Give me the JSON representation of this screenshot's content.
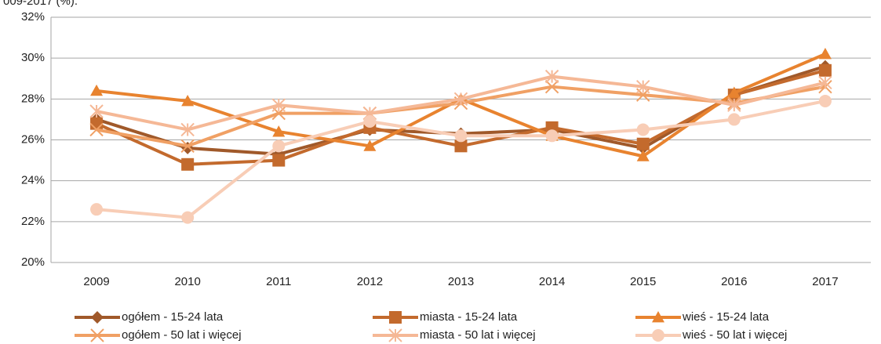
{
  "chart_data": {
    "type": "line",
    "title": "009-2017 (%).",
    "categories": [
      "2009",
      "2010",
      "2011",
      "2012",
      "2013",
      "2014",
      "2015",
      "2016",
      "2017"
    ],
    "ylim": [
      20,
      32
    ],
    "yticks": [
      {
        "value": 20,
        "label": "20%"
      },
      {
        "value": 22,
        "label": "22%"
      },
      {
        "value": 24,
        "label": "24%"
      },
      {
        "value": 26,
        "label": "26%"
      },
      {
        "value": 28,
        "label": "28%"
      },
      {
        "value": 30,
        "label": "30%"
      },
      {
        "value": 32,
        "label": "32%"
      }
    ],
    "grid": true,
    "legend": "bottom",
    "series": [
      {
        "name": "ogółem - 15-24 lata",
        "color": "#a0592a",
        "marker": "diamond",
        "values": [
          27.0,
          25.6,
          25.3,
          26.5,
          26.3,
          26.5,
          25.6,
          28.2,
          29.6
        ]
      },
      {
        "name": "miasta - 15-24 lata",
        "color": "#c36a2d",
        "marker": "square",
        "values": [
          26.8,
          24.8,
          25.0,
          26.6,
          25.7,
          26.6,
          25.8,
          28.2,
          29.4
        ]
      },
      {
        "name": "wieś - 15-24 lata",
        "color": "#e8832f",
        "marker": "triangle",
        "values": [
          28.4,
          27.9,
          26.4,
          25.7,
          28.0,
          26.2,
          25.2,
          28.3,
          30.2
        ]
      },
      {
        "name": "ogółem - 50 lat i więcej",
        "color": "#f0a064",
        "marker": "x",
        "values": [
          26.5,
          25.7,
          27.3,
          27.3,
          27.8,
          28.6,
          28.2,
          27.8,
          28.6
        ]
      },
      {
        "name": "miasta - 50 lat i więcej",
        "color": "#f5b896",
        "marker": "star",
        "values": [
          27.4,
          26.5,
          27.7,
          27.3,
          28.0,
          29.1,
          28.6,
          27.7,
          28.8
        ]
      },
      {
        "name": "wieś - 50 lat i więcej",
        "color": "#f8cdb6",
        "marker": "circle",
        "values": [
          22.6,
          22.2,
          25.7,
          26.9,
          26.2,
          26.2,
          26.5,
          27.0,
          27.9
        ]
      }
    ]
  }
}
